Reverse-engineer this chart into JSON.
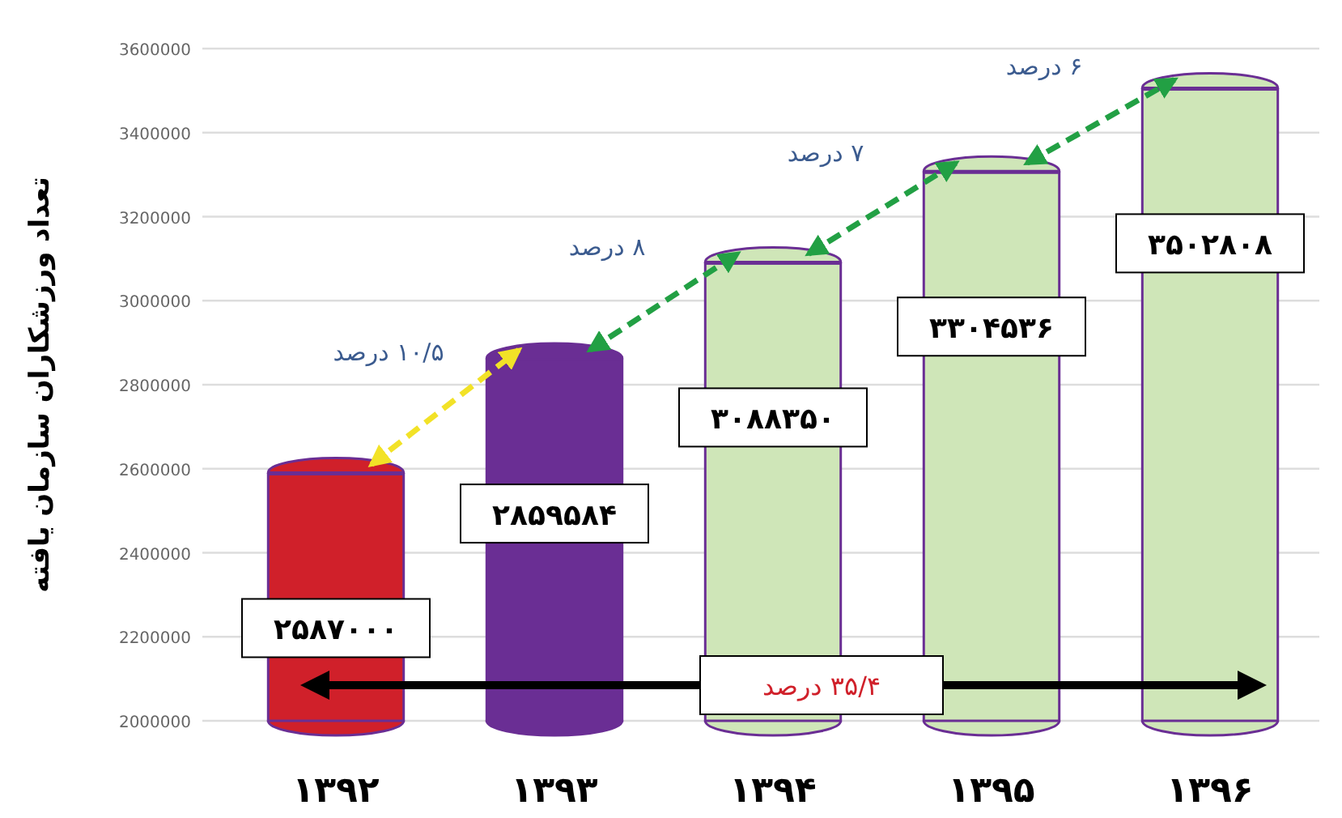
{
  "chart_data": {
    "type": "bar",
    "ylabel": "تعداد ورزشکاران سازمان یافته",
    "categories": [
      "۱۳۹۲",
      "۱۳۹۳",
      "۱۳۹۴",
      "۱۳۹۵",
      "۱۳۹۶"
    ],
    "values": [
      2587000,
      2859584,
      3088350,
      3304536,
      3502808
    ],
    "colors": [
      "#d0202a",
      "#6a2e94",
      "#cfe6b8",
      "#cfe6b8",
      "#cfe6b8"
    ],
    "value_labels": [
      "۲۵۸۷۰۰۰",
      "۲۸۵۹۵۸۴",
      "۳۰۸۸۳۵۰",
      "۳۳۰۴۵۳۶",
      "۳۵۰۲۸۰۸"
    ],
    "ylim": [
      2000000,
      3600000
    ],
    "yticks": [
      2000000,
      2200000,
      2400000,
      2600000,
      2800000,
      3000000,
      3200000,
      3400000,
      3600000
    ],
    "grid": "y",
    "annotations": [
      "۱۰/۵ درصد",
      "۸ درصد",
      "۷ درصد",
      "۶ درصد",
      "۳۵/۴ درصد"
    ]
  }
}
